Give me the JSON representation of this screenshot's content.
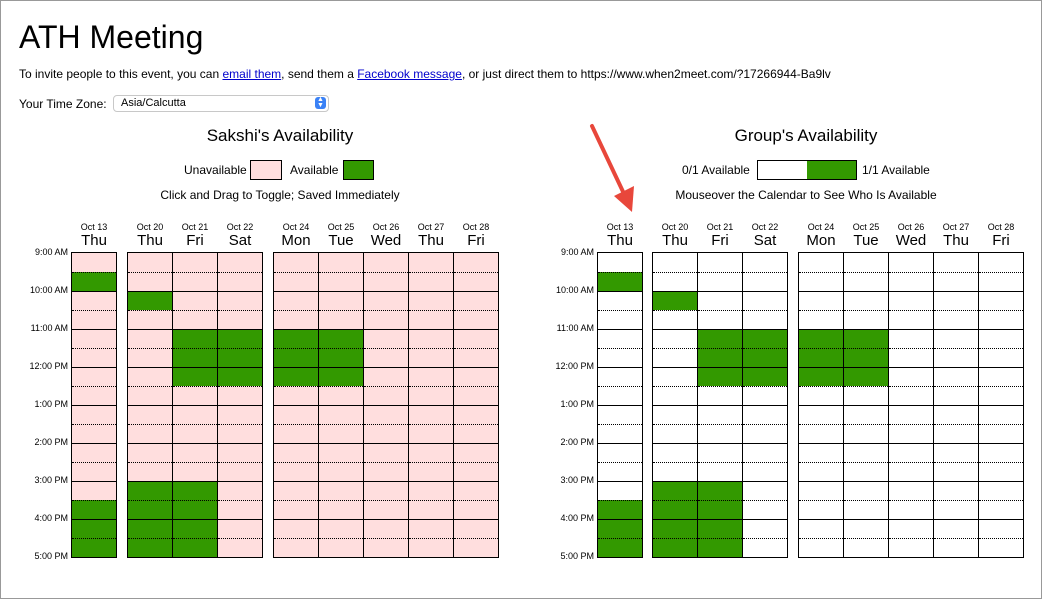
{
  "page": {
    "title": "ATH Meeting",
    "invite_prefix": "To invite people to this event, you can ",
    "email_link": "email them",
    "invite_middle": ", send them a ",
    "facebook_link": "Facebook message",
    "invite_suffix": ", or just direct them to https://www.when2meet.com/?17266944-Ba9lv"
  },
  "timezone": {
    "label": "Your Time Zone:",
    "value": "Asia/Calcutta"
  },
  "colors": {
    "unavailable": "#ffdede",
    "available": "#339900",
    "group_empty": "#ffffff",
    "annotation_arrow": "#e8473b"
  },
  "personal": {
    "title": "Sakshi's Availability",
    "legend_unavailable": "Unavailable",
    "legend_available": "Available",
    "note": "Click and Drag to Toggle; Saved Immediately"
  },
  "group": {
    "title": "Group's Availability",
    "legend_min": "0/1 Available",
    "legend_max": "1/1 Available",
    "note": "Mouseover the Calendar to See Who Is Available"
  },
  "time_labels": [
    "9:00 AM",
    "10:00 AM",
    "11:00 AM",
    "12:00 PM",
    "1:00 PM",
    "2:00 PM",
    "3:00 PM",
    "4:00 PM",
    "5:00 PM"
  ],
  "days": [
    {
      "date": "Oct 13",
      "name": "Thu",
      "available": [
        1,
        13,
        14,
        15
      ]
    },
    {
      "date": "Oct 20",
      "name": "Thu",
      "available": [
        2,
        12,
        13,
        14,
        15
      ]
    },
    {
      "date": "Oct 21",
      "name": "Fri",
      "available": [
        4,
        5,
        6,
        12,
        13,
        14,
        15
      ]
    },
    {
      "date": "Oct 22",
      "name": "Sat",
      "available": [
        4,
        5,
        6
      ]
    },
    {
      "date": "Oct 24",
      "name": "Mon",
      "available": [
        4,
        5,
        6
      ]
    },
    {
      "date": "Oct 25",
      "name": "Tue",
      "available": [
        4,
        5,
        6
      ]
    },
    {
      "date": "Oct 26",
      "name": "Wed",
      "available": []
    },
    {
      "date": "Oct 27",
      "name": "Thu",
      "available": []
    },
    {
      "date": "Oct 28",
      "name": "Fri",
      "available": []
    }
  ],
  "slots_per_day": 16
}
